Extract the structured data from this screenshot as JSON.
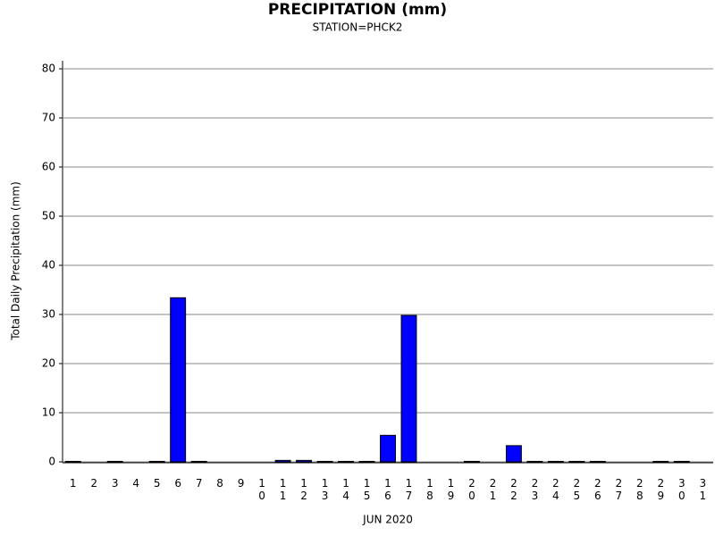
{
  "chart_data": {
    "type": "bar",
    "title": "PRECIPITATION (mm)",
    "subtitle": "STATION=PHCK2",
    "x_label": "JUN 2020",
    "y_label": "Total Daily Precipitation (mm)",
    "categories": [
      "1",
      "2",
      "3",
      "4",
      "5",
      "6",
      "7",
      "8",
      "9",
      "10",
      "11",
      "12",
      "13",
      "14",
      "15",
      "16",
      "17",
      "18",
      "19",
      "20",
      "21",
      "22",
      "23",
      "24",
      "25",
      "26",
      "27",
      "28",
      "29",
      "30",
      "31"
    ],
    "values": [
      0.1,
      0,
      0.1,
      0,
      0.1,
      33.4,
      0.1,
      0,
      0,
      0,
      0.3,
      0.3,
      0.1,
      0.1,
      0.1,
      5.4,
      29.8,
      0,
      0,
      0.1,
      0,
      3.3,
      0.1,
      0.1,
      0.1,
      0.1,
      0,
      0,
      0.1,
      0.1,
      0
    ],
    "color": "#0000ff",
    "ylim": [
      0,
      80
    ],
    "yticks": [
      0,
      10,
      20,
      30,
      40,
      50,
      60,
      70,
      80
    ],
    "grid": true
  }
}
